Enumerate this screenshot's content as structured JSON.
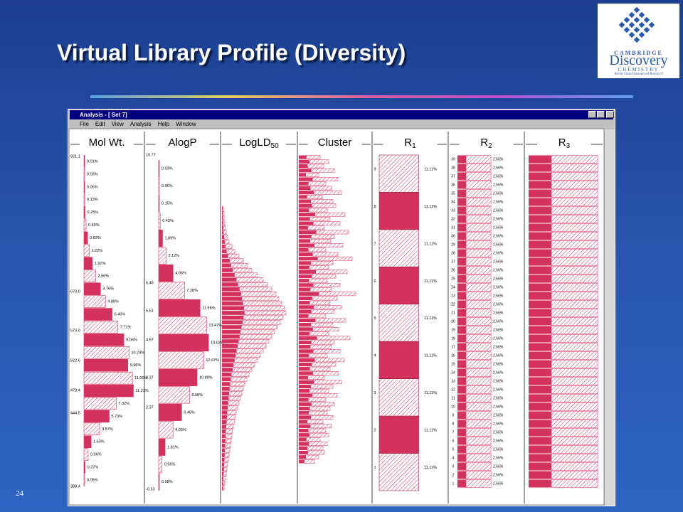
{
  "slide": {
    "title": "Virtual Library Profile (Diversity)",
    "page_number": "24"
  },
  "logo": {
    "line1": "CAMBRIDGE",
    "line2": "Discovery",
    "line3": "CHEMISTRY",
    "tagline": "World Class Outsourced Research"
  },
  "window": {
    "title": "Analysis - [ Set 7]",
    "menu": [
      "File",
      "Edit",
      "View",
      "Analysis",
      "Help",
      "Window"
    ]
  },
  "columns": [
    {
      "text": "Mol Wt."
    },
    {
      "text": "AlogP"
    },
    {
      "text": "LogLD",
      "sub": "50"
    },
    {
      "text": "Cluster"
    },
    {
      "text": "R",
      "sub": "1"
    },
    {
      "text": "R",
      "sub": "2"
    },
    {
      "text": "R",
      "sub": "3"
    }
  ],
  "mol_wt": {
    "ticks": [
      "821.1",
      "673.0",
      "573.0",
      "522.6",
      "479.4",
      "444.5",
      "388.4"
    ],
    "values": [
      0.01,
      0.03,
      0.06,
      0.13,
      0.25,
      0.49,
      0.83,
      1.22,
      1.92,
      2.66,
      3.76,
      4.88,
      6.4,
      7.71,
      9.06,
      10.24,
      9.96,
      11.0,
      11.21,
      7.32,
      5.73,
      3.57,
      1.63,
      0.96,
      0.27,
      0.05
    ],
    "value_labels": [
      "0.01%",
      "0.03%",
      "0.06%",
      "0.13%",
      "0.25%",
      "0.49%",
      "0.83%",
      "1.22%",
      "1.92%",
      "2.66%",
      "3.76%",
      "4.88%",
      "6.40%",
      "7.71%",
      "9.06%",
      "10.24%",
      "9.96%",
      "11.00%",
      "11.21%",
      "7.32%",
      "5.73%",
      "3.57%",
      "1.63%",
      "0.96%",
      "0.27%",
      "0.05%"
    ]
  },
  "alogp": {
    "ticks": [
      "10.77",
      "6.49",
      "5.61",
      "4.57",
      "3.37",
      "2.37",
      "-0.33"
    ],
    "values": [
      0.03,
      0.06,
      0.15,
      0.43,
      1.09,
      2.12,
      4.06,
      7.28,
      11.66,
      13.47,
      14.02,
      12.67,
      10.8,
      8.68,
      6.46,
      4.03,
      1.81,
      0.96,
      0.08
    ],
    "value_labels": [
      "0.03%",
      "0.06%",
      "0.15%",
      "0.43%",
      "1.09%",
      "2.12%",
      "4.06%",
      "7.28%",
      "11.66%",
      "13.47%",
      "14.02%",
      "12.67%",
      "10.80%",
      "8.68%",
      "6.46%",
      "4.03%",
      "1.81%",
      "0.96%",
      "0.08%"
    ]
  },
  "logld50": {
    "values": [
      2,
      3,
      3,
      4,
      5,
      6,
      8,
      10,
      14,
      18,
      24,
      30,
      36,
      42,
      50,
      58,
      64,
      70,
      76,
      80,
      84,
      88,
      90,
      86,
      82,
      78,
      74,
      70,
      66,
      62,
      58,
      54,
      50,
      46,
      42,
      38,
      35,
      32,
      30,
      28,
      26,
      24,
      22,
      20,
      19,
      18,
      16,
      15,
      14,
      13,
      12,
      11,
      10,
      9,
      8,
      7,
      6,
      5,
      4,
      3
    ]
  },
  "cluster": {
    "values": [
      30,
      42,
      35,
      50,
      28,
      55,
      38,
      46,
      60,
      33,
      48,
      52,
      40,
      65,
      44,
      58,
      36,
      70,
      50,
      45,
      62,
      38,
      55,
      75,
      48,
      42,
      68,
      52,
      40,
      58,
      46,
      80,
      54,
      44,
      60,
      50,
      38,
      66,
      48,
      56,
      42,
      72,
      50,
      46,
      58,
      40,
      64,
      52,
      44,
      56,
      36,
      60,
      48,
      42,
      54,
      38,
      50,
      44,
      40,
      48,
      34,
      46,
      38,
      42,
      30,
      40,
      34,
      36,
      28,
      22
    ]
  },
  "r1": {
    "rows": [
      "9",
      "8",
      "7",
      "6",
      "5",
      "4",
      "3",
      "2",
      "1"
    ],
    "values": [
      11.11,
      11.11,
      11.11,
      11.11,
      11.11,
      11.11,
      11.11,
      11.11,
      11.11
    ],
    "value_labels": [
      "11.11%",
      "11.11%",
      "11.11%",
      "11.11%",
      "11.11%",
      "11.11%",
      "11.11%",
      "11.11%",
      "11.11%"
    ]
  },
  "r2": {
    "rows": [
      "39",
      "38",
      "37",
      "36",
      "35",
      "34",
      "33",
      "32",
      "31",
      "30",
      "29",
      "28",
      "27",
      "26",
      "25",
      "24",
      "23",
      "22",
      "21",
      "20",
      "19",
      "18",
      "17",
      "16",
      "15",
      "14",
      "13",
      "12",
      "11",
      "10",
      "9",
      "8",
      "7",
      "6",
      "5",
      "4",
      "3",
      "2",
      "1"
    ],
    "values": [
      2.56,
      2.56,
      2.56,
      2.56,
      2.56,
      2.56,
      2.56,
      2.56,
      2.56,
      2.56,
      2.56,
      2.56,
      2.56,
      2.56,
      2.56,
      2.56,
      2.56,
      2.56,
      2.56,
      2.56,
      2.56,
      2.56,
      2.56,
      2.56,
      2.56,
      2.56,
      2.56,
      2.56,
      2.56,
      2.56,
      2.56,
      2.56,
      2.56,
      2.56,
      2.56,
      2.56,
      2.56,
      2.56,
      2.56
    ],
    "value_labels": [
      "2.56%",
      "2.56%",
      "2.56%",
      "2.56%",
      "2.56%",
      "2.56%",
      "2.56%",
      "2.56%",
      "2.56%",
      "2.56%",
      "2.56%",
      "2.56%",
      "2.56%",
      "2.56%",
      "2.56%",
      "2.56%",
      "2.56%",
      "2.56%",
      "2.56%",
      "2.56%",
      "2.56%",
      "2.56%",
      "2.56%",
      "2.56%",
      "2.56%",
      "2.56%",
      "2.56%",
      "2.56%",
      "2.56%",
      "2.56%",
      "2.56%",
      "2.56%",
      "2.56%",
      "2.56%",
      "2.56%",
      "2.56%",
      "2.56%",
      "2.56%",
      "2.56%"
    ]
  },
  "r3": {
    "values": [
      2.56,
      2.56,
      2.56,
      2.56,
      2.56,
      2.56,
      2.56,
      2.56,
      2.56,
      2.56,
      2.56,
      2.56,
      2.56,
      2.56,
      2.56,
      2.56,
      2.56,
      2.56,
      2.56,
      2.56,
      2.56,
      2.56,
      2.56,
      2.56,
      2.56,
      2.56,
      2.56,
      2.56,
      2.56,
      2.56,
      2.56,
      2.56,
      2.56,
      2.56,
      2.56,
      2.56,
      2.56,
      2.56,
      2.56
    ]
  }
}
